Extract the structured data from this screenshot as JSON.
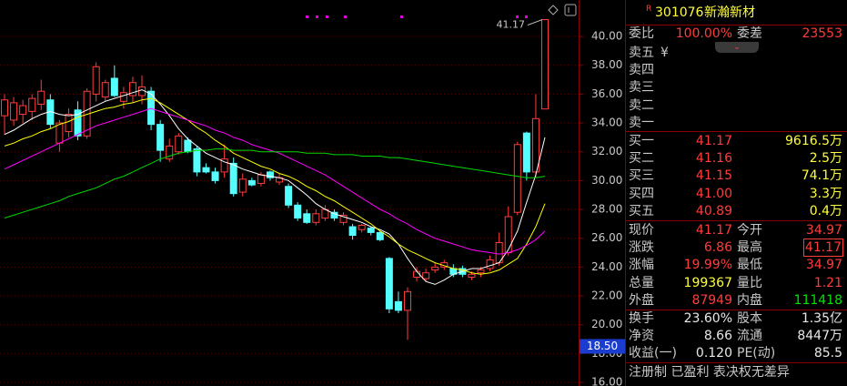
{
  "chart_data": {
    "type": "candlestick",
    "ylim": [
      15.75,
      42.53
    ],
    "yticks": [
      {
        "value": 16,
        "label": "16.00"
      },
      {
        "value": 18,
        "label": "18.00"
      },
      {
        "value": 20,
        "label": "20.00"
      },
      {
        "value": 22,
        "label": "22.00"
      },
      {
        "value": 24,
        "label": "24.00"
      },
      {
        "value": 26,
        "label": "26.00"
      },
      {
        "value": 28,
        "label": "28.00"
      },
      {
        "value": 30,
        "label": "30.00"
      },
      {
        "value": 32,
        "label": "32.00"
      },
      {
        "value": 34,
        "label": "34.00"
      },
      {
        "value": 36,
        "label": "36.00"
      },
      {
        "value": 38,
        "label": "38.00"
      },
      {
        "value": 40,
        "label": "40.00"
      }
    ],
    "grid": true,
    "up_color": "#ff3c3c",
    "down_color": "#54ffff",
    "open": [
      34.5,
      34.2,
      34.6,
      34.8,
      35.3,
      35.6,
      32.6,
      33.4,
      34.9,
      33.1,
      36.0,
      35.8,
      37.1,
      35.5,
      35.9,
      35.9,
      36.2,
      33.9,
      31.5,
      32.0,
      32.8,
      32.2,
      30.9,
      30.6,
      30.6,
      31.2,
      29.2,
      30.0,
      29.8,
      30.6,
      29.9,
      29.6,
      28.3,
      27.7,
      27.1,
      27.4,
      27.8,
      27.1,
      26.8,
      26.6,
      26.7,
      26.4,
      24.6,
      21.6,
      21.0,
      23.3,
      23.2,
      23.8,
      24.0,
      23.9,
      23.9,
      23.3,
      23.6,
      23.9,
      24.3,
      25.0,
      27.8,
      33.3,
      30.6,
      34.97
    ],
    "high": [
      36.0,
      35.8,
      35.6,
      36.0,
      37.0,
      36.0,
      34.2,
      35.0,
      35.5,
      36.4,
      38.2,
      37.0,
      38.0,
      36.5,
      37.2,
      37.3,
      36.5,
      34.2,
      32.9,
      33.3,
      33.0,
      32.4,
      31.2,
      30.9,
      32.5,
      31.6,
      30.5,
      30.2,
      30.6,
      30.7,
      30.5,
      29.8,
      28.5,
      28.0,
      28.0,
      28.3,
      28.0,
      27.8,
      27.0,
      27.0,
      26.8,
      26.5,
      24.7,
      22.3,
      22.6,
      24.0,
      23.9,
      24.3,
      24.5,
      24.2,
      24.1,
      23.7,
      24.0,
      24.8,
      26.4,
      28.2,
      32.7,
      33.4,
      36.0,
      41.17
    ],
    "low": [
      33.2,
      33.8,
      34.0,
      34.2,
      34.9,
      33.6,
      32.0,
      33.0,
      32.8,
      32.9,
      35.5,
      35.5,
      35.8,
      35.0,
      35.4,
      35.3,
      33.5,
      31.3,
      31.3,
      31.8,
      31.9,
      30.3,
      30.5,
      29.8,
      30.2,
      28.9,
      28.9,
      29.6,
      29.6,
      30.0,
      29.7,
      28.1,
      27.2,
      27.0,
      26.9,
      27.2,
      27.2,
      26.9,
      25.9,
      26.4,
      26.2,
      25.8,
      20.8,
      20.8,
      18.95,
      23.0,
      23.0,
      23.6,
      23.8,
      23.3,
      23.3,
      23.1,
      23.3,
      23.7,
      24.1,
      24.8,
      27.6,
      30.0,
      30.2,
      34.97
    ],
    "close": [
      35.6,
      35.4,
      35.2,
      35.7,
      36.2,
      33.9,
      34.0,
      34.6,
      33.1,
      36.2,
      37.9,
      36.8,
      35.9,
      36.1,
      36.8,
      36.5,
      33.9,
      32.1,
      32.4,
      33.1,
      32.0,
      30.6,
      30.6,
      30.0,
      31.5,
      29.1,
      30.1,
      29.7,
      30.4,
      30.2,
      30.2,
      28.3,
      27.4,
      27.1,
      27.7,
      28.0,
      27.4,
      27.6,
      26.2,
      26.9,
      26.4,
      25.9,
      21.1,
      21.0,
      22.3,
      23.7,
      23.6,
      24.0,
      24.3,
      23.5,
      23.5,
      23.5,
      23.8,
      24.5,
      25.7,
      27.5,
      32.5,
      30.6,
      34.3,
      41.17
    ],
    "series": [
      {
        "color": "#ffffff",
        "values": [
          33.2,
          33.5,
          33.9,
          34.3,
          34.6,
          34.8,
          34.6,
          34.5,
          34.6,
          34.9,
          35.2,
          35.5,
          35.7,
          35.9,
          36.1,
          36.3,
          36.0,
          35.3,
          34.5,
          33.6,
          32.9,
          32.4,
          31.9,
          31.6,
          31.3,
          31.1,
          30.8,
          30.6,
          30.4,
          30.3,
          30.2,
          30.0,
          29.5,
          29.0,
          28.4,
          28.0,
          27.7,
          27.5,
          27.3,
          27.1,
          26.8,
          26.6,
          26.3,
          25.6,
          24.6,
          23.7,
          23.0,
          22.8,
          23.1,
          23.5,
          23.7,
          23.9,
          23.9,
          24.1,
          24.3,
          25.2,
          26.5,
          28.5,
          30.4,
          33.0
        ]
      },
      {
        "color": "#ffff00",
        "values": [
          32.4,
          32.6,
          32.9,
          33.1,
          33.4,
          33.6,
          33.9,
          34.1,
          34.4,
          34.6,
          34.8,
          35.0,
          35.1,
          35.3,
          35.4,
          35.6,
          35.7,
          35.4,
          35.0,
          34.6,
          34.2,
          33.7,
          33.3,
          32.8,
          32.4,
          31.9,
          31.6,
          31.3,
          31.0,
          30.8,
          30.5,
          30.3,
          30.0,
          29.6,
          29.3,
          28.9,
          28.6,
          28.2,
          27.8,
          27.4,
          27.0,
          26.5,
          26.1,
          25.6,
          25.2,
          24.9,
          24.6,
          24.3,
          24.1,
          23.9,
          23.8,
          23.6,
          23.5,
          23.6,
          23.8,
          24.2,
          24.6,
          25.6,
          26.8,
          28.4
        ]
      },
      {
        "color": "#ff00ff",
        "values": [
          30.8,
          31.1,
          31.4,
          31.7,
          32.0,
          32.3,
          32.6,
          32.9,
          33.2,
          33.5,
          33.8,
          34.0,
          34.2,
          34.4,
          34.6,
          34.8,
          35.0,
          34.8,
          34.6,
          34.4,
          34.2,
          34.0,
          33.8,
          33.5,
          33.3,
          33.0,
          32.8,
          32.5,
          32.3,
          32.1,
          31.9,
          31.6,
          31.3,
          31.0,
          30.7,
          30.4,
          30.0,
          29.6,
          29.2,
          28.8,
          28.4,
          28.0,
          27.7,
          27.3,
          27.0,
          26.6,
          26.3,
          26.0,
          25.8,
          25.6,
          25.4,
          25.2,
          25.1,
          25.0,
          24.9,
          25.0,
          25.2,
          25.5,
          25.9,
          26.5
        ]
      },
      {
        "color": "#00d800",
        "values": [
          27.4,
          27.6,
          27.8,
          28.0,
          28.2,
          28.4,
          28.6,
          28.9,
          29.1,
          29.3,
          29.5,
          29.8,
          30.1,
          30.3,
          30.6,
          30.9,
          31.2,
          31.5,
          31.7,
          31.9,
          32.0,
          32.1,
          32.1,
          32.2,
          32.2,
          32.1,
          32.1,
          32.1,
          32.0,
          32.0,
          32.0,
          32.0,
          32.0,
          31.9,
          31.9,
          31.9,
          31.8,
          31.8,
          31.8,
          31.7,
          31.7,
          31.7,
          31.6,
          31.6,
          31.5,
          31.4,
          31.3,
          31.2,
          31.1,
          31.0,
          30.9,
          30.8,
          30.7,
          30.6,
          30.5,
          30.4,
          30.3,
          30.2,
          30.2,
          30.3
        ]
      }
    ],
    "peak_label": 41.17,
    "cursor_price": {
      "value": 18.5,
      "label": "18.50"
    }
  },
  "quote_panel": {
    "badge": "R",
    "code": "301076",
    "name": "新瀚新材",
    "order_ratio": {
      "label": "委比",
      "value": "100.00%"
    },
    "order_diff": {
      "label": "委差",
      "value": 23553
    },
    "ask_cursor": "¥",
    "asks": [
      "卖五",
      "卖四",
      "卖三",
      "卖二",
      "卖一"
    ],
    "bids": [
      {
        "label": "买一",
        "price": 41.17,
        "volume": "9616.5万"
      },
      {
        "label": "买二",
        "price": 41.16,
        "volume": "2.5万"
      },
      {
        "label": "买三",
        "price": 41.15,
        "volume": "74.1万"
      },
      {
        "label": "买四",
        "price": "41.00",
        "volume": "3.3万"
      },
      {
        "label": "买五",
        "price": 40.89,
        "volume": "0.4万"
      }
    ],
    "stats": [
      [
        {
          "label": "现价",
          "value": 41.17
        },
        {
          "label": "今开",
          "value": 34.97
        }
      ],
      [
        {
          "label": "涨跌",
          "value": 6.86
        },
        {
          "label": "最高",
          "value": 41.17
        }
      ],
      [
        {
          "label": "涨幅",
          "value": "19.99%"
        },
        {
          "label": "最低",
          "value": 34.97
        }
      ],
      [
        {
          "label": "总量",
          "value": 199367
        },
        {
          "label": "量比",
          "value": 1.21
        }
      ],
      [
        {
          "label": "外盘",
          "value": 87949
        },
        {
          "label": "内盘",
          "value": 111418
        }
      ]
    ],
    "fundamentals": [
      [
        {
          "label": "换手",
          "value": "23.60%"
        },
        {
          "label": "股本",
          "value": "1.35亿"
        }
      ],
      [
        {
          "label": "净资",
          "value": 8.66
        },
        {
          "label": "流通",
          "value": "8447万"
        }
      ],
      [
        {
          "label": "收益(一)",
          "value": "0.120"
        },
        {
          "label": "PE(动)",
          "value": 85.5
        }
      ]
    ],
    "tags": "注册制 已盈利 表决权无差异"
  }
}
